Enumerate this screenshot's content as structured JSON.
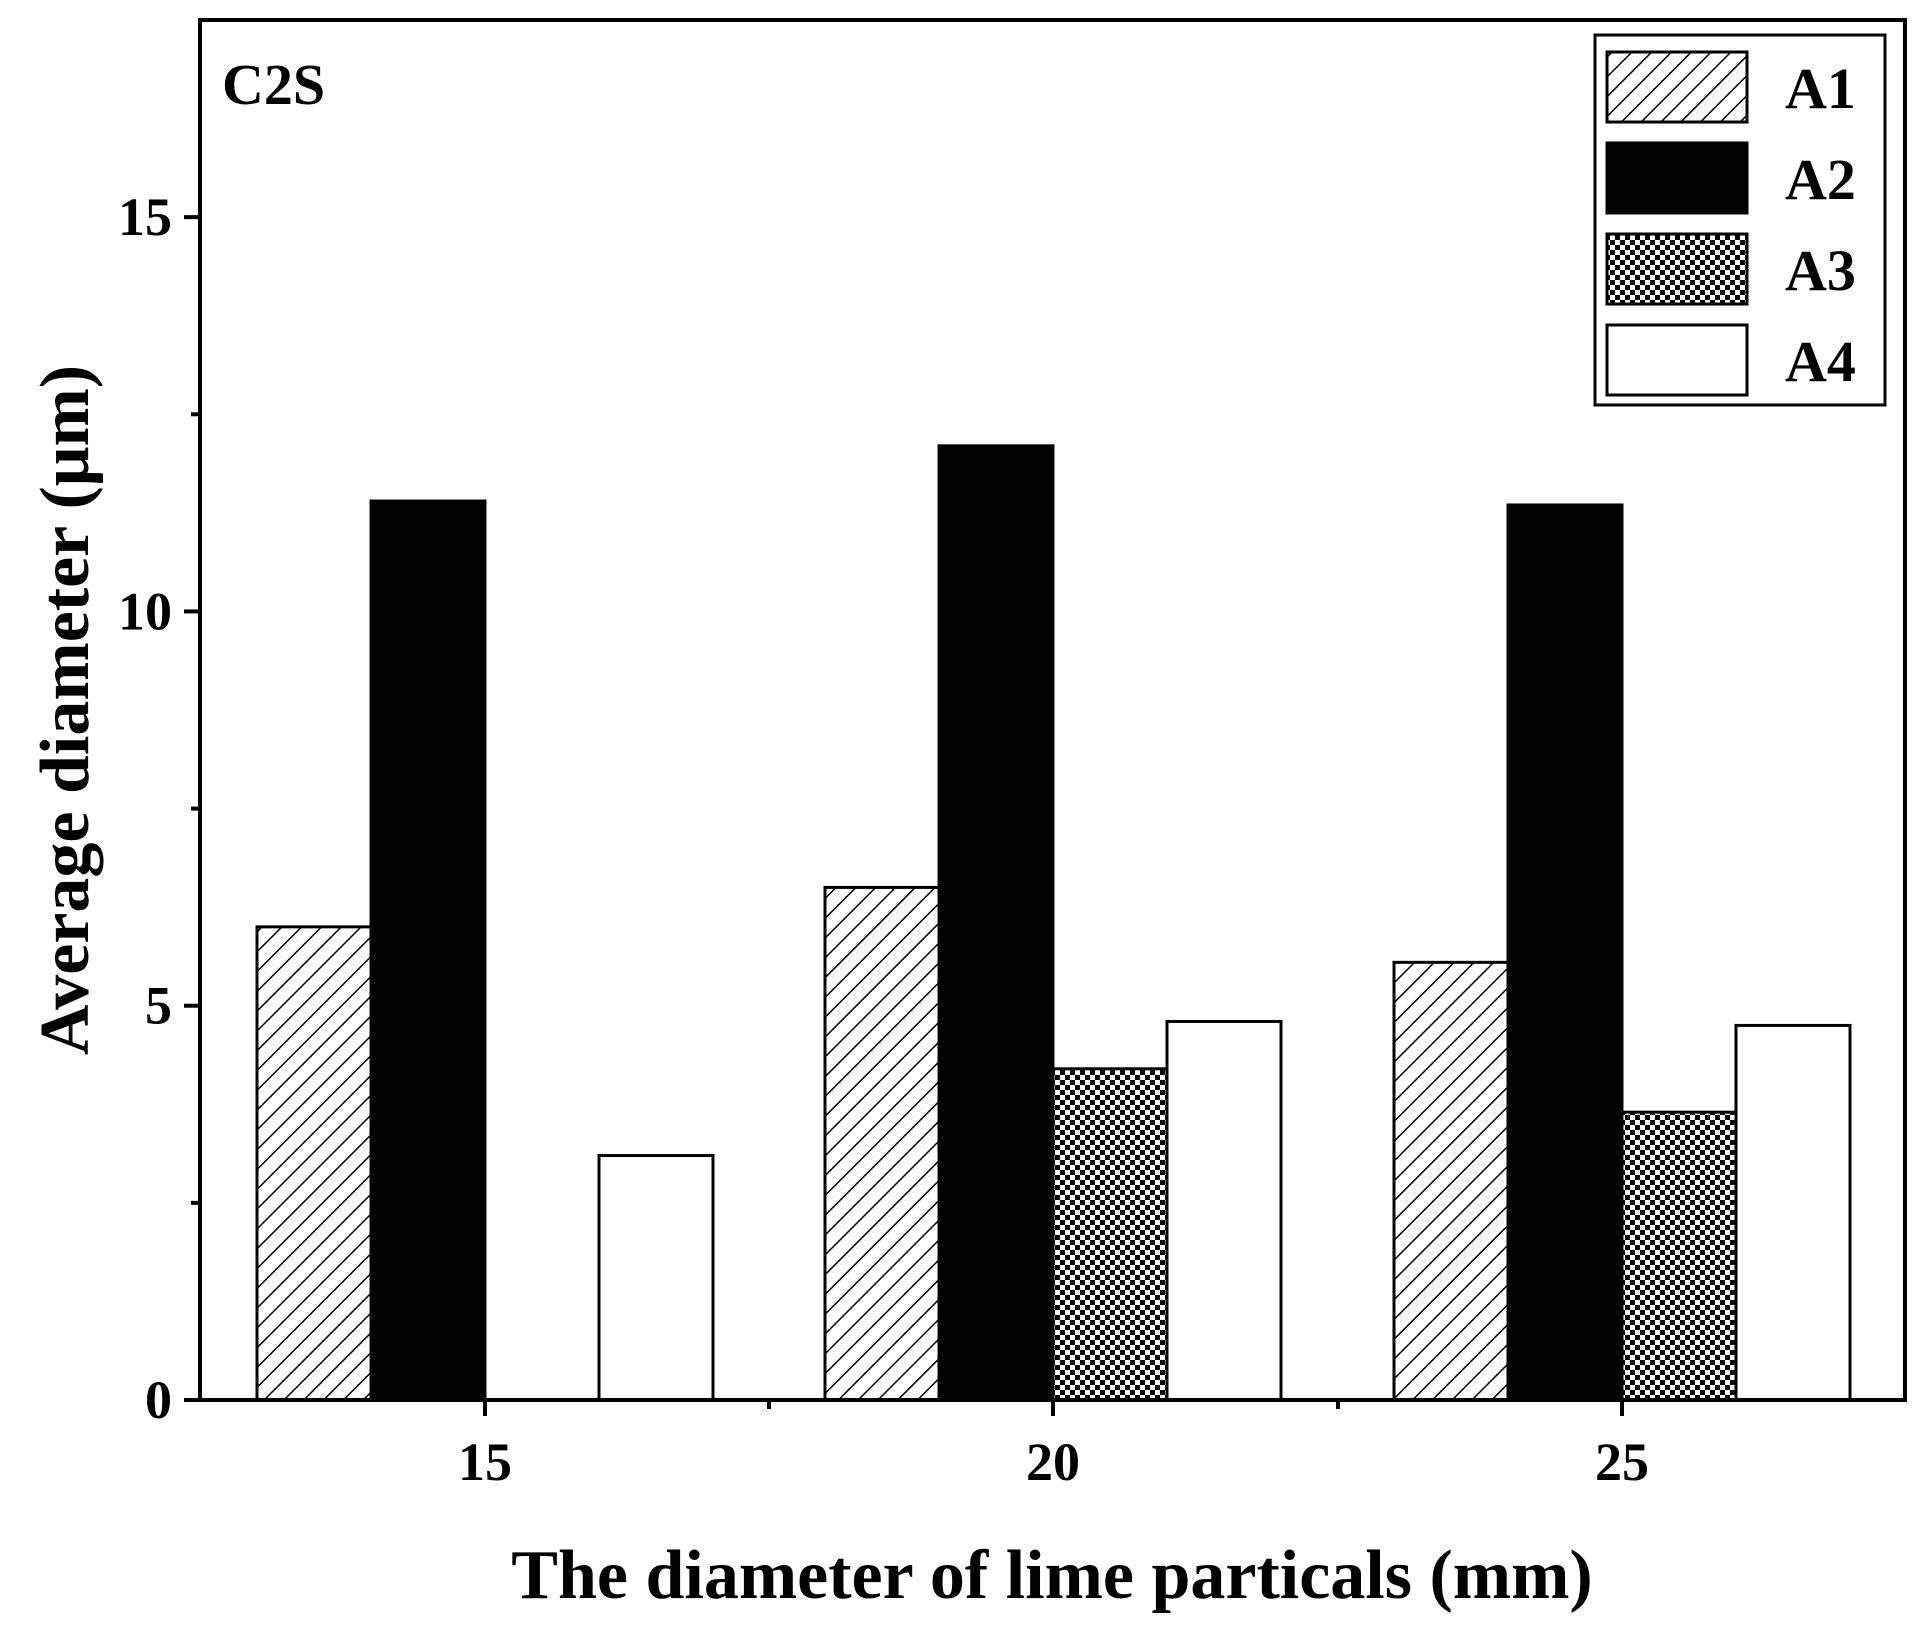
{
  "chart_data": {
    "type": "bar",
    "title": "",
    "panel_label": "C2S",
    "xlabel": "The diameter of lime particals (mm)",
    "ylabel": "Average diameter (μm)",
    "categories": [
      "15",
      "20",
      "25"
    ],
    "series": [
      {
        "name": "A1",
        "pattern": "diagonal-hatch",
        "values": [
          6.0,
          6.5,
          5.55
        ]
      },
      {
        "name": "A2",
        "pattern": "solid-black",
        "values": [
          11.4,
          12.1,
          11.35
        ]
      },
      {
        "name": "A3",
        "pattern": "checkered",
        "values": [
          null,
          4.2,
          3.65
        ]
      },
      {
        "name": "A4",
        "pattern": "white",
        "values": [
          3.1,
          4.8,
          4.75
        ]
      }
    ],
    "ylim": [
      0,
      17.5
    ],
    "y_major_ticks": [
      0,
      5,
      10,
      15
    ],
    "y_minor_ticks": [
      2.5,
      7.5,
      12.5
    ],
    "y_tick_labels": [
      "0",
      "5",
      "10",
      "15"
    ],
    "x_tick_labels": [
      "15",
      "20",
      "25"
    ],
    "legend_position": "top-right",
    "grid": false
  }
}
